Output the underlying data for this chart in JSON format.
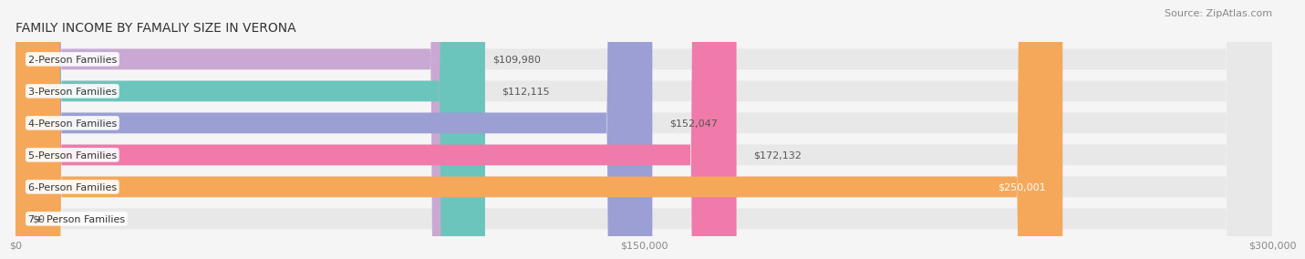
{
  "title": "FAMILY INCOME BY FAMALIY SIZE IN VERONA",
  "source": "Source: ZipAtlas.com",
  "categories": [
    "2-Person Families",
    "3-Person Families",
    "4-Person Families",
    "5-Person Families",
    "6-Person Families",
    "7+ Person Families"
  ],
  "values": [
    109980,
    112115,
    152047,
    172132,
    250001,
    0
  ],
  "bar_colors": [
    "#c9a8d4",
    "#6cc5bc",
    "#9b9fd4",
    "#f07aaa",
    "#f5a85a",
    "#f5c0c0"
  ],
  "value_labels": [
    "$109,980",
    "$112,115",
    "$152,047",
    "$172,132",
    "$250,001",
    "$0"
  ],
  "xlim": [
    0,
    300000
  ],
  "xticklabels": [
    "$0",
    "$150,000",
    "$300,000"
  ],
  "background_color": "#f5f5f5",
  "bar_background_color": "#e8e8e8",
  "title_fontsize": 10,
  "source_fontsize": 8,
  "label_fontsize": 8,
  "value_fontsize": 8,
  "bar_height": 0.65
}
